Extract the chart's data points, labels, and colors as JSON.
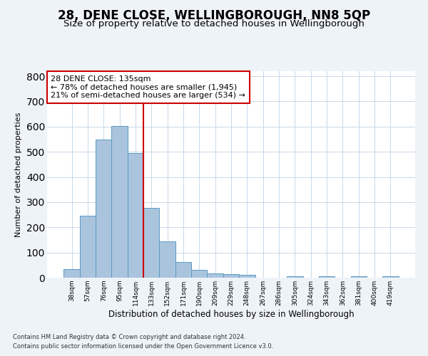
{
  "title": "28, DENE CLOSE, WELLINGBOROUGH, NN8 5QP",
  "subtitle": "Size of property relative to detached houses in Wellingborough",
  "xlabel": "Distribution of detached houses by size in Wellingborough",
  "ylabel": "Number of detached properties",
  "footnote1": "Contains HM Land Registry data © Crown copyright and database right 2024.",
  "footnote2": "Contains public sector information licensed under the Open Government Licence v3.0.",
  "bar_labels": [
    "38sqm",
    "57sqm",
    "76sqm",
    "95sqm",
    "114sqm",
    "133sqm",
    "152sqm",
    "171sqm",
    "190sqm",
    "209sqm",
    "229sqm",
    "248sqm",
    "267sqm",
    "286sqm",
    "305sqm",
    "324sqm",
    "343sqm",
    "362sqm",
    "381sqm",
    "400sqm",
    "419sqm"
  ],
  "bar_values": [
    33,
    247,
    548,
    603,
    494,
    278,
    144,
    62,
    30,
    18,
    13,
    11,
    0,
    0,
    5,
    0,
    7,
    0,
    5,
    0,
    5
  ],
  "bar_color": "#aac4dd",
  "bar_edge_color": "#5b9ac4",
  "vline_color": "#cc0000",
  "annotation_text": "28 DENE CLOSE: 135sqm\n← 78% of detached houses are smaller (1,945)\n21% of semi-detached houses are larger (534) →",
  "annotation_box_color": "white",
  "annotation_box_edge_color": "#cc0000",
  "ylim": [
    0,
    820
  ],
  "yticks": [
    0,
    100,
    200,
    300,
    400,
    500,
    600,
    700,
    800
  ],
  "grid_color": "#c8d8e8",
  "bg_color": "#eef3f8",
  "plot_bg_color": "white",
  "title_fontsize": 12,
  "subtitle_fontsize": 9.5,
  "annotation_fontsize": 8,
  "ylabel_fontsize": 8,
  "xlabel_fontsize": 8.5,
  "footnote_fontsize": 6,
  "tick_fontsize": 6.5
}
